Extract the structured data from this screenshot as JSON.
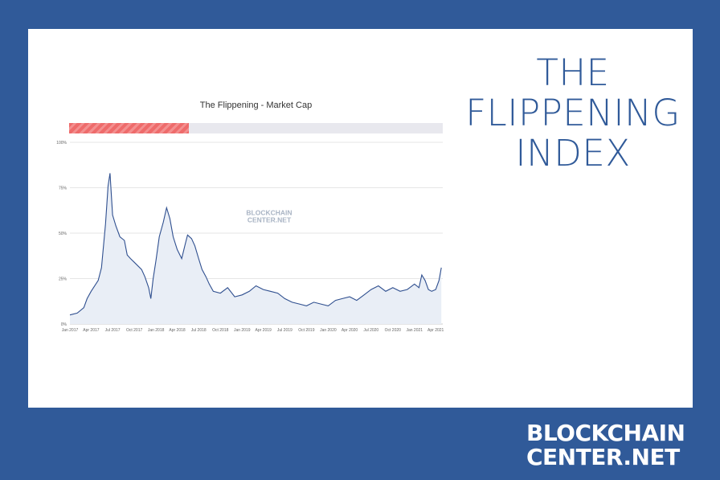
{
  "side_title": {
    "line1": "THE",
    "line2": "FLIPPENING",
    "line3": "INDEX"
  },
  "brand": {
    "line1": "BLOCKCHAIN",
    "line2": "CENTER.NET"
  },
  "watermark": {
    "line1": "BLOCKCHAIN",
    "line2": "CENTER.NET"
  },
  "progress": {
    "value": 0.32,
    "color": "#ee6b6b"
  },
  "colors": {
    "background": "#305a99",
    "line": "#2f4f8f",
    "area": "#e9eef6"
  },
  "chart_data": {
    "type": "area",
    "title": "The Flippening - Market Cap",
    "xlabel": "",
    "ylabel": "",
    "ylim": [
      0,
      100
    ],
    "y_ticks": [
      "0%",
      "25%",
      "50%",
      "75%",
      "100%"
    ],
    "y_tick_values": [
      0,
      25,
      50,
      75,
      100
    ],
    "x_ticks": [
      "Jan 2017",
      "Apr 2017",
      "Jul 2017",
      "Oct 2017",
      "Jan 2018",
      "Apr 2018",
      "Jul 2018",
      "Oct 2018",
      "Jan 2019",
      "Apr 2019",
      "Jul 2019",
      "Oct 2019",
      "Jan 2020",
      "Apr 2020",
      "Jul 2020",
      "Oct 2020",
      "Jan 2021",
      "Apr 2021"
    ],
    "x_tick_values": [
      "2017-01-01",
      "2017-04-01",
      "2017-07-01",
      "2017-10-01",
      "2018-01-01",
      "2018-04-01",
      "2018-07-01",
      "2018-10-01",
      "2019-01-01",
      "2019-04-01",
      "2019-07-01",
      "2019-10-01",
      "2020-01-01",
      "2020-04-01",
      "2020-07-01",
      "2020-10-01",
      "2021-01-01",
      "2021-04-01"
    ],
    "xlim": [
      "2017-01-01",
      "2021-05-01"
    ],
    "grid": true,
    "series": [
      {
        "x": [
          "2017-01-01",
          "2017-02-01",
          "2017-03-01",
          "2017-03-15",
          "2017-04-01",
          "2017-05-01",
          "2017-05-15",
          "2017-06-01",
          "2017-06-12",
          "2017-06-20",
          "2017-07-01",
          "2017-07-15",
          "2017-08-01",
          "2017-08-20",
          "2017-09-01",
          "2017-09-15",
          "2017-10-01",
          "2017-11-01",
          "2017-11-15",
          "2017-12-01",
          "2017-12-10",
          "2017-12-20",
          "2018-01-01",
          "2018-01-15",
          "2018-02-01",
          "2018-02-15",
          "2018-03-01",
          "2018-03-15",
          "2018-04-01",
          "2018-04-20",
          "2018-05-05",
          "2018-05-15",
          "2018-06-01",
          "2018-06-15",
          "2018-07-01",
          "2018-07-15",
          "2018-08-01",
          "2018-08-15",
          "2018-09-01",
          "2018-10-01",
          "2018-11-01",
          "2018-12-01",
          "2019-01-01",
          "2019-02-01",
          "2019-03-01",
          "2019-04-01",
          "2019-05-01",
          "2019-06-01",
          "2019-07-01",
          "2019-08-01",
          "2019-09-01",
          "2019-10-01",
          "2019-11-01",
          "2019-12-01",
          "2020-01-01",
          "2020-02-01",
          "2020-03-01",
          "2020-04-01",
          "2020-05-01",
          "2020-06-01",
          "2020-07-01",
          "2020-08-01",
          "2020-09-01",
          "2020-10-01",
          "2020-11-01",
          "2020-12-01",
          "2021-01-01",
          "2021-01-20",
          "2021-02-01",
          "2021-02-15",
          "2021-03-01",
          "2021-03-15",
          "2021-04-01",
          "2021-04-15",
          "2021-04-25"
        ],
        "values": [
          5,
          6,
          9,
          14,
          18,
          24,
          31,
          55,
          76,
          83,
          60,
          54,
          48,
          46,
          38,
          36,
          34,
          30,
          26,
          20,
          14,
          25,
          35,
          48,
          56,
          64,
          58,
          48,
          41,
          36,
          44,
          49,
          47,
          43,
          36,
          30,
          26,
          22,
          18,
          17,
          20,
          15,
          16,
          18,
          21,
          19,
          18,
          17,
          14,
          12,
          11,
          10,
          12,
          11,
          10,
          13,
          14,
          15,
          13,
          16,
          19,
          21,
          18,
          20,
          18,
          19,
          22,
          20,
          27,
          24,
          19,
          18,
          19,
          24,
          31
        ]
      }
    ]
  }
}
